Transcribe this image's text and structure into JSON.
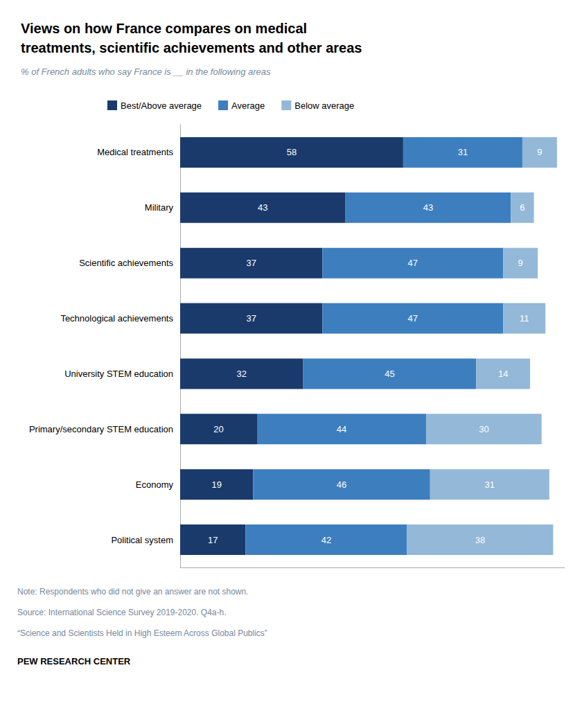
{
  "chart_data": {
    "type": "bar",
    "orientation": "horizontal",
    "stacked": true,
    "data_labels": true,
    "tick_labels": "y",
    "grid": false,
    "legend": "top",
    "title": "Views on how France compares on medical\ntreatments, scientific achievements and other areas",
    "subtitle": "% of French adults who say France is __ in the following areas",
    "categories": [
      "Medical treatments",
      "Military",
      "Scientific achievements",
      "Technological achievements",
      "University STEM education",
      "Primary/secondary STEM education",
      "Economy",
      "Political system"
    ],
    "series": [
      {
        "name": "Best/Above average",
        "color": "#1a3a6b",
        "values": [
          58,
          43,
          37,
          37,
          32,
          20,
          19,
          17
        ]
      },
      {
        "name": "Average",
        "color": "#3d7ebf",
        "values": [
          31,
          43,
          47,
          47,
          45,
          44,
          46,
          42
        ]
      },
      {
        "name": "Below average",
        "color": "#93b8d8",
        "values": [
          9,
          6,
          9,
          11,
          14,
          30,
          31,
          38
        ]
      }
    ],
    "xlim": [
      0,
      100
    ],
    "notes": [
      "Note: Respondents who did not give an answer are not shown.",
      "Source: International Science Survey 2019-2020. Q4a-h.",
      "“Science and Scientists Held in High Esteem Across Global Publics”"
    ],
    "source": "PEW RESEARCH CENTER"
  }
}
